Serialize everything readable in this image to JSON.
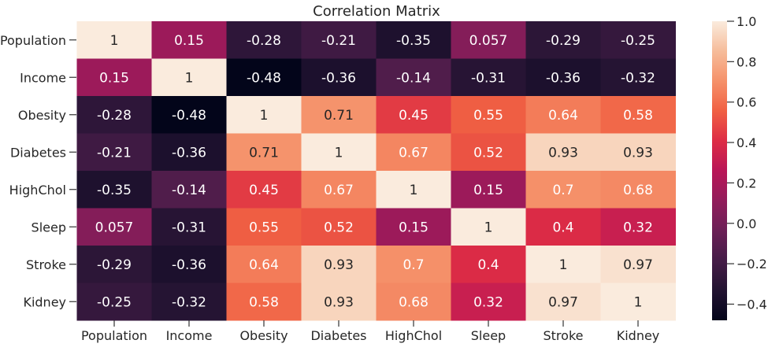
{
  "chart_data": {
    "type": "heatmap",
    "title": "Correlation Matrix",
    "colormap": "rocket",
    "vmin": -0.48,
    "vmax": 1.0,
    "colorbar_ticks": [
      "1.0",
      "0.8",
      "0.6",
      "0.4",
      "0.2",
      "0.0",
      "−0.2",
      "−0.4"
    ],
    "colorbar_tick_values": [
      1.0,
      0.8,
      0.6,
      0.4,
      0.2,
      0.0,
      -0.2,
      -0.4
    ],
    "row_labels": [
      "Population",
      "Income",
      "Obesity",
      "Diabetes",
      "HighChol",
      "Sleep",
      "Stroke",
      "Kidney"
    ],
    "col_labels": [
      "Population",
      "Income",
      "Obesity",
      "Diabetes",
      "HighChol",
      "Sleep",
      "Stroke",
      "Kidney"
    ],
    "values": [
      [
        1,
        0.15,
        -0.28,
        -0.21,
        -0.35,
        0.057,
        -0.29,
        -0.25
      ],
      [
        0.15,
        1,
        -0.48,
        -0.36,
        -0.14,
        -0.31,
        -0.36,
        -0.32
      ],
      [
        -0.28,
        -0.48,
        1,
        0.71,
        0.45,
        0.55,
        0.64,
        0.58
      ],
      [
        -0.21,
        -0.36,
        0.71,
        1,
        0.67,
        0.52,
        0.93,
        0.93
      ],
      [
        -0.35,
        -0.14,
        0.45,
        0.67,
        1,
        0.15,
        0.7,
        0.68
      ],
      [
        0.057,
        -0.31,
        0.55,
        0.52,
        0.15,
        1,
        0.4,
        0.32
      ],
      [
        -0.29,
        -0.36,
        0.64,
        0.93,
        0.7,
        0.4,
        1,
        0.97
      ],
      [
        -0.25,
        -0.32,
        0.58,
        0.93,
        0.68,
        0.32,
        0.97,
        1
      ]
    ],
    "annotations": [
      [
        "1",
        "0.15",
        "-0.28",
        "-0.21",
        "-0.35",
        "0.057",
        "-0.29",
        "-0.25"
      ],
      [
        "0.15",
        "1",
        "-0.48",
        "-0.36",
        "-0.14",
        "-0.31",
        "-0.36",
        "-0.32"
      ],
      [
        "-0.28",
        "-0.48",
        "1",
        "0.71",
        "0.45",
        "0.55",
        "0.64",
        "0.58"
      ],
      [
        "-0.21",
        "-0.36",
        "0.71",
        "1",
        "0.67",
        "0.52",
        "0.93",
        "0.93"
      ],
      [
        "-0.35",
        "-0.14",
        "0.45",
        "0.67",
        "1",
        "0.15",
        "0.7",
        "0.68"
      ],
      [
        "0.057",
        "-0.31",
        "0.55",
        "0.52",
        "0.15",
        "1",
        "0.4",
        "0.32"
      ],
      [
        "-0.29",
        "-0.36",
        "0.64",
        "0.93",
        "0.7",
        "0.4",
        "1",
        "0.97"
      ],
      [
        "-0.25",
        "-0.32",
        "0.58",
        "0.93",
        "0.68",
        "0.32",
        "0.97",
        "1"
      ]
    ],
    "grid": false,
    "legend": "colorbar-right"
  }
}
